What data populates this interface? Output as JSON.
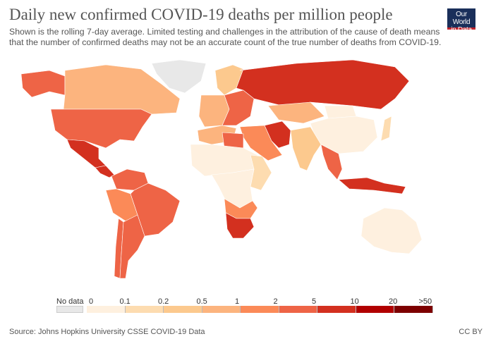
{
  "title": "Daily new confirmed COVID-19 deaths per million people",
  "subtitle_lines": [
    "Shown is the rolling 7-day average. Limited testing and challenges in the attribution of the cause of death means",
    "that the number of confirmed deaths may not be an accurate count of the true number of deaths from COVID-19."
  ],
  "logo": [
    "Our World",
    "in Data"
  ],
  "legend": {
    "no_data_label": "No data",
    "no_data_color": "#e8e8e8",
    "ticks": [
      "0",
      "0.1",
      "0.2",
      "0.5",
      "1",
      "2",
      "5",
      "10",
      "20",
      ">50"
    ],
    "colors": [
      "#fef0df",
      "#fddcb0",
      "#fcc98e",
      "#fcb47e",
      "#fb8a58",
      "#ee6446",
      "#d3301f",
      "#b10000",
      "#7d0000"
    ]
  },
  "regions": {
    "greenland": -1,
    "canada": 3,
    "alaska": 5,
    "usa": 5,
    "mexico": 6,
    "central-america": 6,
    "colombia-venezuela": 5,
    "brazil": 5,
    "peru-bolivia": 4,
    "argentina": 5,
    "chile": 5,
    "western-europe": 3,
    "eastern-europe": 5,
    "scandinavia": 2,
    "russia": 6,
    "kazakhstan": 3,
    "middle-east": 4,
    "iran": 6,
    "north-africa": 3,
    "libya": 5,
    "sahel-africa": 0,
    "central-africa": 0,
    "east-africa": 1,
    "southern-africa": 4,
    "south-africa": 6,
    "india": 2,
    "china": 0,
    "mongolia": 0,
    "southeast-asia": 5,
    "indonesia": 6,
    "japan": 1,
    "australia": 0
  },
  "source": "Source: Johns Hopkins University CSSE COVID-19 Data",
  "license": "CC BY"
}
